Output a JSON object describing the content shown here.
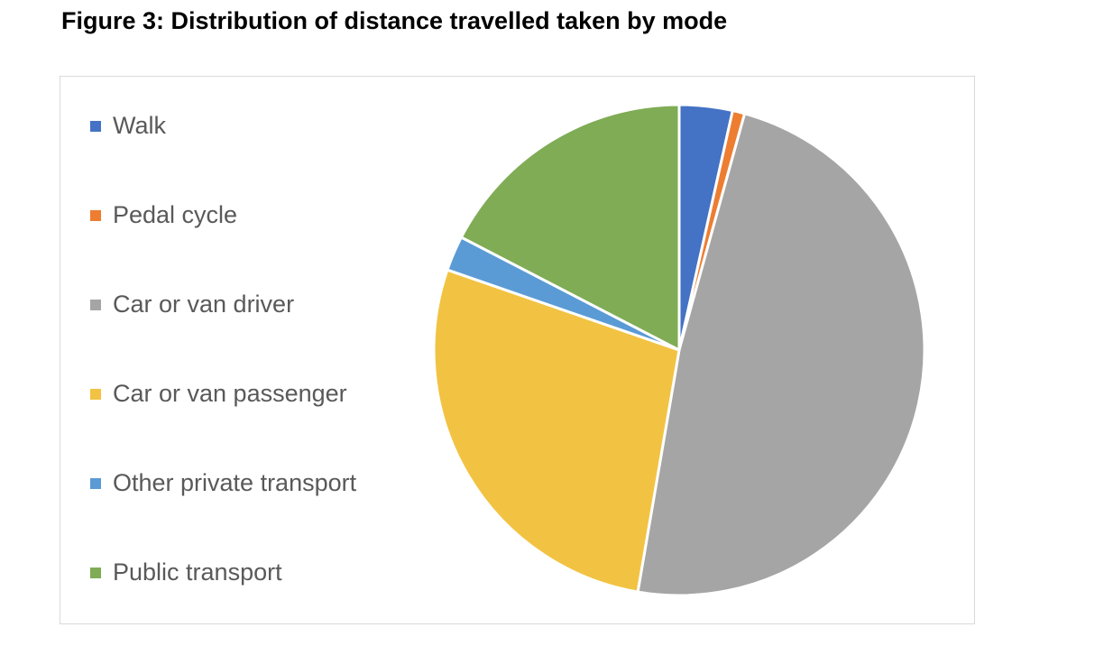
{
  "chart_data": {
    "type": "pie",
    "title": "Figure 3: Distribution of distance travelled taken by mode",
    "categories": [
      "Walk",
      "Pedal cycle",
      "Car or van driver",
      "Car or van passenger",
      "Other private transport",
      "Public transport"
    ],
    "values": [
      3.5,
      0.8,
      48.4,
      27.6,
      2.3,
      17.4
    ],
    "colors": [
      "#4472c4",
      "#ed7d31",
      "#a5a5a5",
      "#f2c342",
      "#5b9bd5",
      "#7fac55"
    ],
    "legend": "left"
  }
}
